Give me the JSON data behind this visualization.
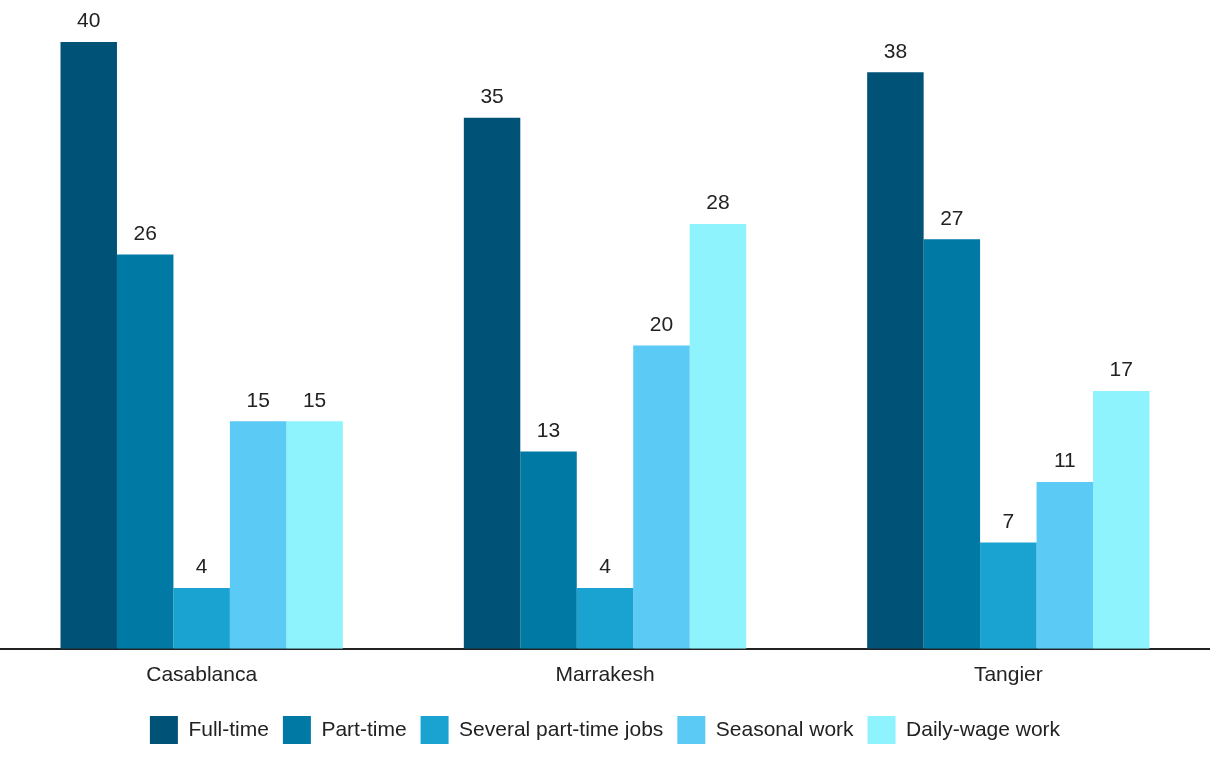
{
  "chart_data": {
    "type": "bar",
    "categories": [
      "Casablanca",
      "Marrakesh",
      "Tangier"
    ],
    "series": [
      {
        "name": "Full-time",
        "color": "#005276",
        "values": [
          40,
          35,
          38
        ]
      },
      {
        "name": "Part-time",
        "color": "#0079a5",
        "values": [
          26,
          13,
          27
        ]
      },
      {
        "name": "Several part-time jobs",
        "color": "#1aa3d1",
        "values": [
          4,
          4,
          7
        ]
      },
      {
        "name": "Seasonal work",
        "color": "#5bcbf5",
        "values": [
          15,
          20,
          11
        ]
      },
      {
        "name": "Daily-wage work",
        "color": "#8ef3fd",
        "values": [
          15,
          28,
          17
        ]
      }
    ],
    "data_labels": true,
    "grid": false,
    "legend": "bottom",
    "tick_labels": "x"
  }
}
